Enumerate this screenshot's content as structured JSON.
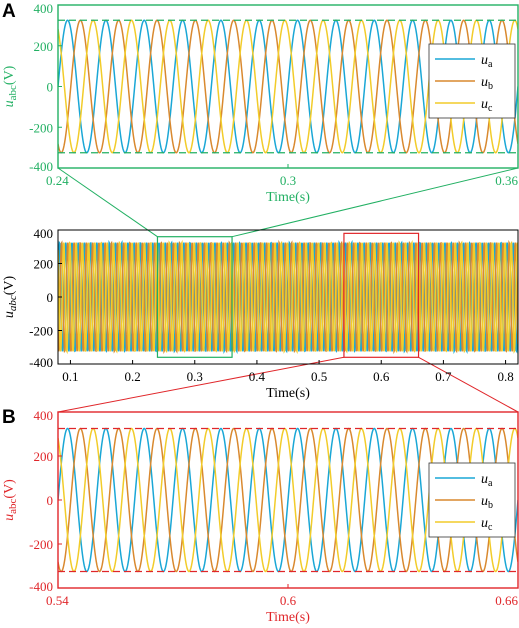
{
  "panel_letters": {
    "a": "A",
    "b": "B"
  },
  "series_colors": {
    "ua": "#1aa7d6",
    "ub": "#d9892f",
    "uc": "#f2cc2a"
  },
  "chart_data": [
    {
      "id": "A",
      "type": "line",
      "frame_color": "#22b063",
      "tick_color": "#22b063",
      "xlabel": "Time(s)",
      "ylabel_main": "u",
      "ylabel_sub": "abc",
      "ylabel_unit": "(V)",
      "xlim": [
        0.24,
        0.36
      ],
      "ylim": [
        -400,
        400
      ],
      "xticks": [
        0.24,
        0.3,
        0.36
      ],
      "xtick_labels": [
        "0.24",
        "0.3",
        "0.36"
      ],
      "yticks": [
        400,
        200,
        0,
        -200,
        -400
      ],
      "ytick_labels": [
        "400",
        "200",
        "0",
        "-200",
        "-400"
      ],
      "envelope": {
        "upper": 325,
        "lower": -325,
        "style": "dashed",
        "color": "#22b063"
      },
      "legend": {
        "placement": "right",
        "entries": [
          {
            "key": "ua",
            "main": "u",
            "sub": "a"
          },
          {
            "key": "ub",
            "main": "u",
            "sub": "b"
          },
          {
            "key": "uc",
            "main": "u",
            "sub": "c"
          }
        ]
      },
      "series": [
        {
          "key": "ua",
          "amplitude": 325,
          "frequency_hz": 100,
          "phase_deg": 0
        },
        {
          "key": "ub",
          "amplitude": 325,
          "frequency_hz": 100,
          "phase_deg": -120
        },
        {
          "key": "uc",
          "amplitude": 325,
          "frequency_hz": 100,
          "phase_deg": 120
        }
      ]
    },
    {
      "id": "overview",
      "type": "line",
      "frame_color": "#000000",
      "tick_color": "#000000",
      "xlabel": "Time(s)",
      "ylabel_main": "u",
      "ylabel_sub": "abc",
      "ylabel_unit": "(V)",
      "xlim": [
        0.08,
        0.82
      ],
      "ylim": [
        -400,
        400
      ],
      "xticks": [
        0.1,
        0.2,
        0.3,
        0.4,
        0.5,
        0.6,
        0.7,
        0.8
      ],
      "xtick_labels": [
        "0.1",
        "0.2",
        "0.3",
        "0.4",
        "0.5",
        "0.6",
        "0.7",
        "0.8"
      ],
      "yticks": [
        400,
        200,
        0,
        -200,
        -400
      ],
      "ytick_labels": [
        "400",
        "200",
        "0",
        "-200",
        "-400"
      ],
      "zoom_boxes": [
        {
          "ref": "A",
          "x": [
            0.24,
            0.36
          ],
          "y": [
            -360,
            360
          ],
          "color": "#22b063"
        },
        {
          "ref": "B",
          "x": [
            0.54,
            0.66
          ],
          "y": [
            -360,
            380
          ],
          "color": "#e0262a"
        }
      ],
      "series": [
        {
          "key": "ua",
          "amplitude": 325,
          "frequency_hz": 100,
          "phase_deg": 0
        },
        {
          "key": "ub",
          "amplitude": 325,
          "frequency_hz": 100,
          "phase_deg": -120
        },
        {
          "key": "uc",
          "amplitude": 325,
          "frequency_hz": 100,
          "phase_deg": 120
        }
      ]
    },
    {
      "id": "B",
      "type": "line",
      "frame_color": "#e0262a",
      "tick_color": "#e0262a",
      "xlabel": "Time(s)",
      "ylabel_main": "u",
      "ylabel_sub": "abc",
      "ylabel_unit": "(V)",
      "xlim": [
        0.54,
        0.66
      ],
      "ylim": [
        -400,
        400
      ],
      "xticks": [
        0.54,
        0.6,
        0.66
      ],
      "xtick_labels": [
        "0.54",
        "0.6",
        "0.66"
      ],
      "yticks": [
        400,
        200,
        0,
        -200,
        -400
      ],
      "ytick_labels": [
        "400",
        "200",
        "0",
        "-200",
        "-400"
      ],
      "envelope": {
        "upper": 325,
        "lower": -325,
        "style": "dashed",
        "color": "#e0262a"
      },
      "legend": {
        "placement": "right",
        "entries": [
          {
            "key": "ua",
            "main": "u",
            "sub": "a"
          },
          {
            "key": "ub",
            "main": "u",
            "sub": "b"
          },
          {
            "key": "uc",
            "main": "u",
            "sub": "c"
          }
        ]
      },
      "series": [
        {
          "key": "ua",
          "amplitude": 325,
          "frequency_hz": 100,
          "phase_deg": 0
        },
        {
          "key": "ub",
          "amplitude": 325,
          "frequency_hz": 100,
          "phase_deg": -120
        },
        {
          "key": "uc",
          "amplitude": 325,
          "frequency_hz": 100,
          "phase_deg": 120
        }
      ]
    }
  ]
}
